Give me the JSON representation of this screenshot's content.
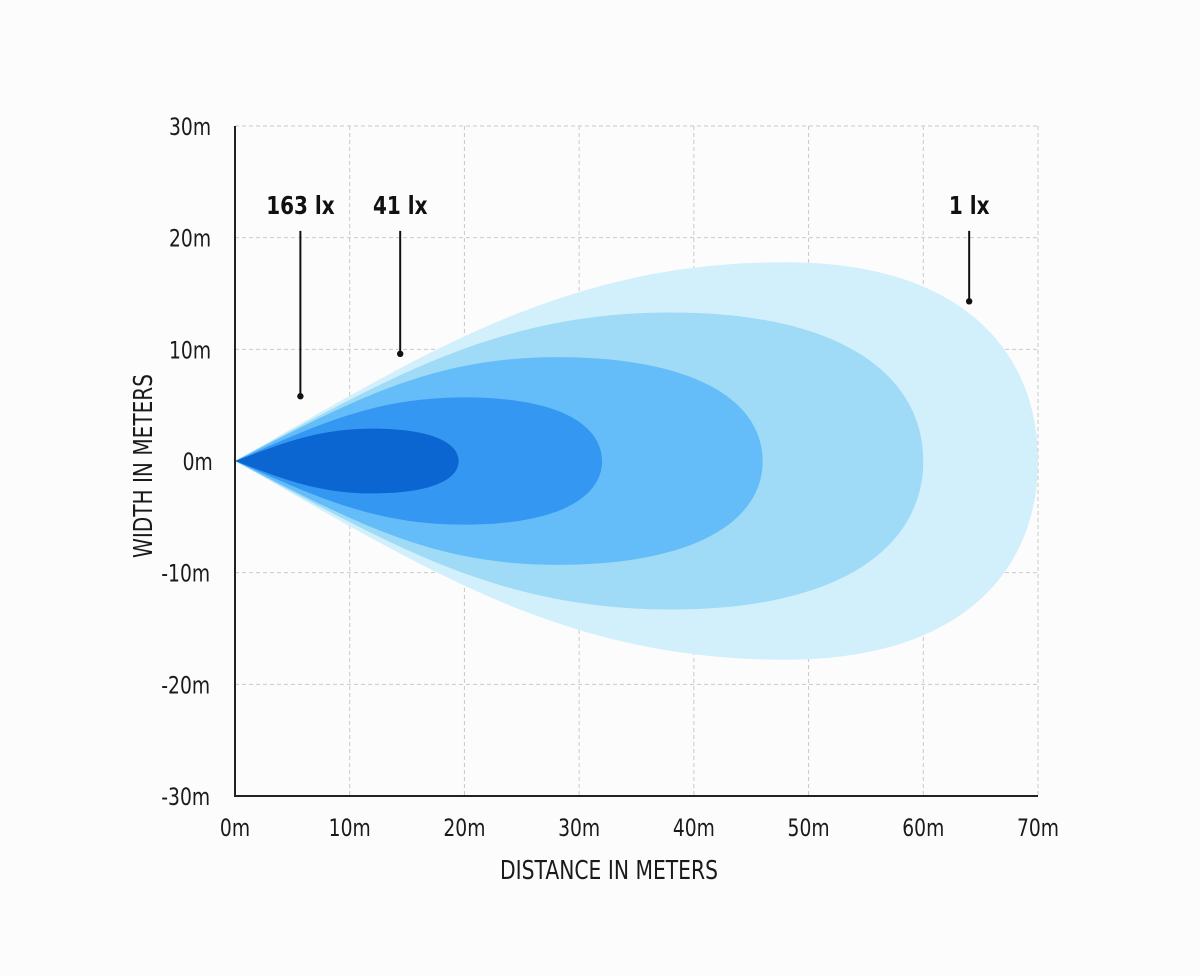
{
  "chart_data": {
    "type": "area",
    "xlabel": "DISTANCE IN METERS",
    "ylabel": "WIDTH IN METERS",
    "xlim": [
      0,
      70
    ],
    "ylim": [
      -30,
      30
    ],
    "x_ticks": [
      {
        "value": 0,
        "label": "0m"
      },
      {
        "value": 10,
        "label": "10m"
      },
      {
        "value": 20,
        "label": "20m"
      },
      {
        "value": 30,
        "label": "30m"
      },
      {
        "value": 40,
        "label": "40m"
      },
      {
        "value": 50,
        "label": "50m"
      },
      {
        "value": 60,
        "label": "60m"
      },
      {
        "value": 70,
        "label": "70m"
      }
    ],
    "y_ticks": [
      {
        "value": 30,
        "label": "30m"
      },
      {
        "value": 20,
        "label": "20m"
      },
      {
        "value": 10,
        "label": "10m"
      },
      {
        "value": 0,
        "label": "0m"
      },
      {
        "value": -10,
        "label": "-10m"
      },
      {
        "value": -20,
        "label": "-20m"
      },
      {
        "value": -30,
        "label": "-30m"
      }
    ],
    "grid": true,
    "series": [
      {
        "color": "#d2f0fb",
        "reach": 70,
        "peak_x": 48,
        "half_width": 17.8
      },
      {
        "color": "#9fdaf7",
        "reach": 60,
        "peak_x": 38,
        "half_width": 13.3
      },
      {
        "color": "#64bdf8",
        "reach": 46,
        "peak_x": 28,
        "half_width": 9.3
      },
      {
        "color": "#3498f3",
        "reach": 32,
        "peak_x": 20,
        "half_width": 5.7
      },
      {
        "color": "#0b66d2",
        "reach": 19.5,
        "peak_x": 12,
        "half_width": 2.9
      }
    ],
    "annotations": [
      {
        "label": "163 lx",
        "point": [
          5.7,
          5.8
        ],
        "label_at": [
          5.7,
          21.5
        ]
      },
      {
        "label": "41 lx",
        "point": [
          14.4,
          9.6
        ],
        "label_at": [
          14.4,
          21.5
        ]
      },
      {
        "label": "1 lx",
        "point": [
          64.0,
          14.3
        ],
        "label_at": [
          64.0,
          21.5
        ]
      }
    ]
  }
}
